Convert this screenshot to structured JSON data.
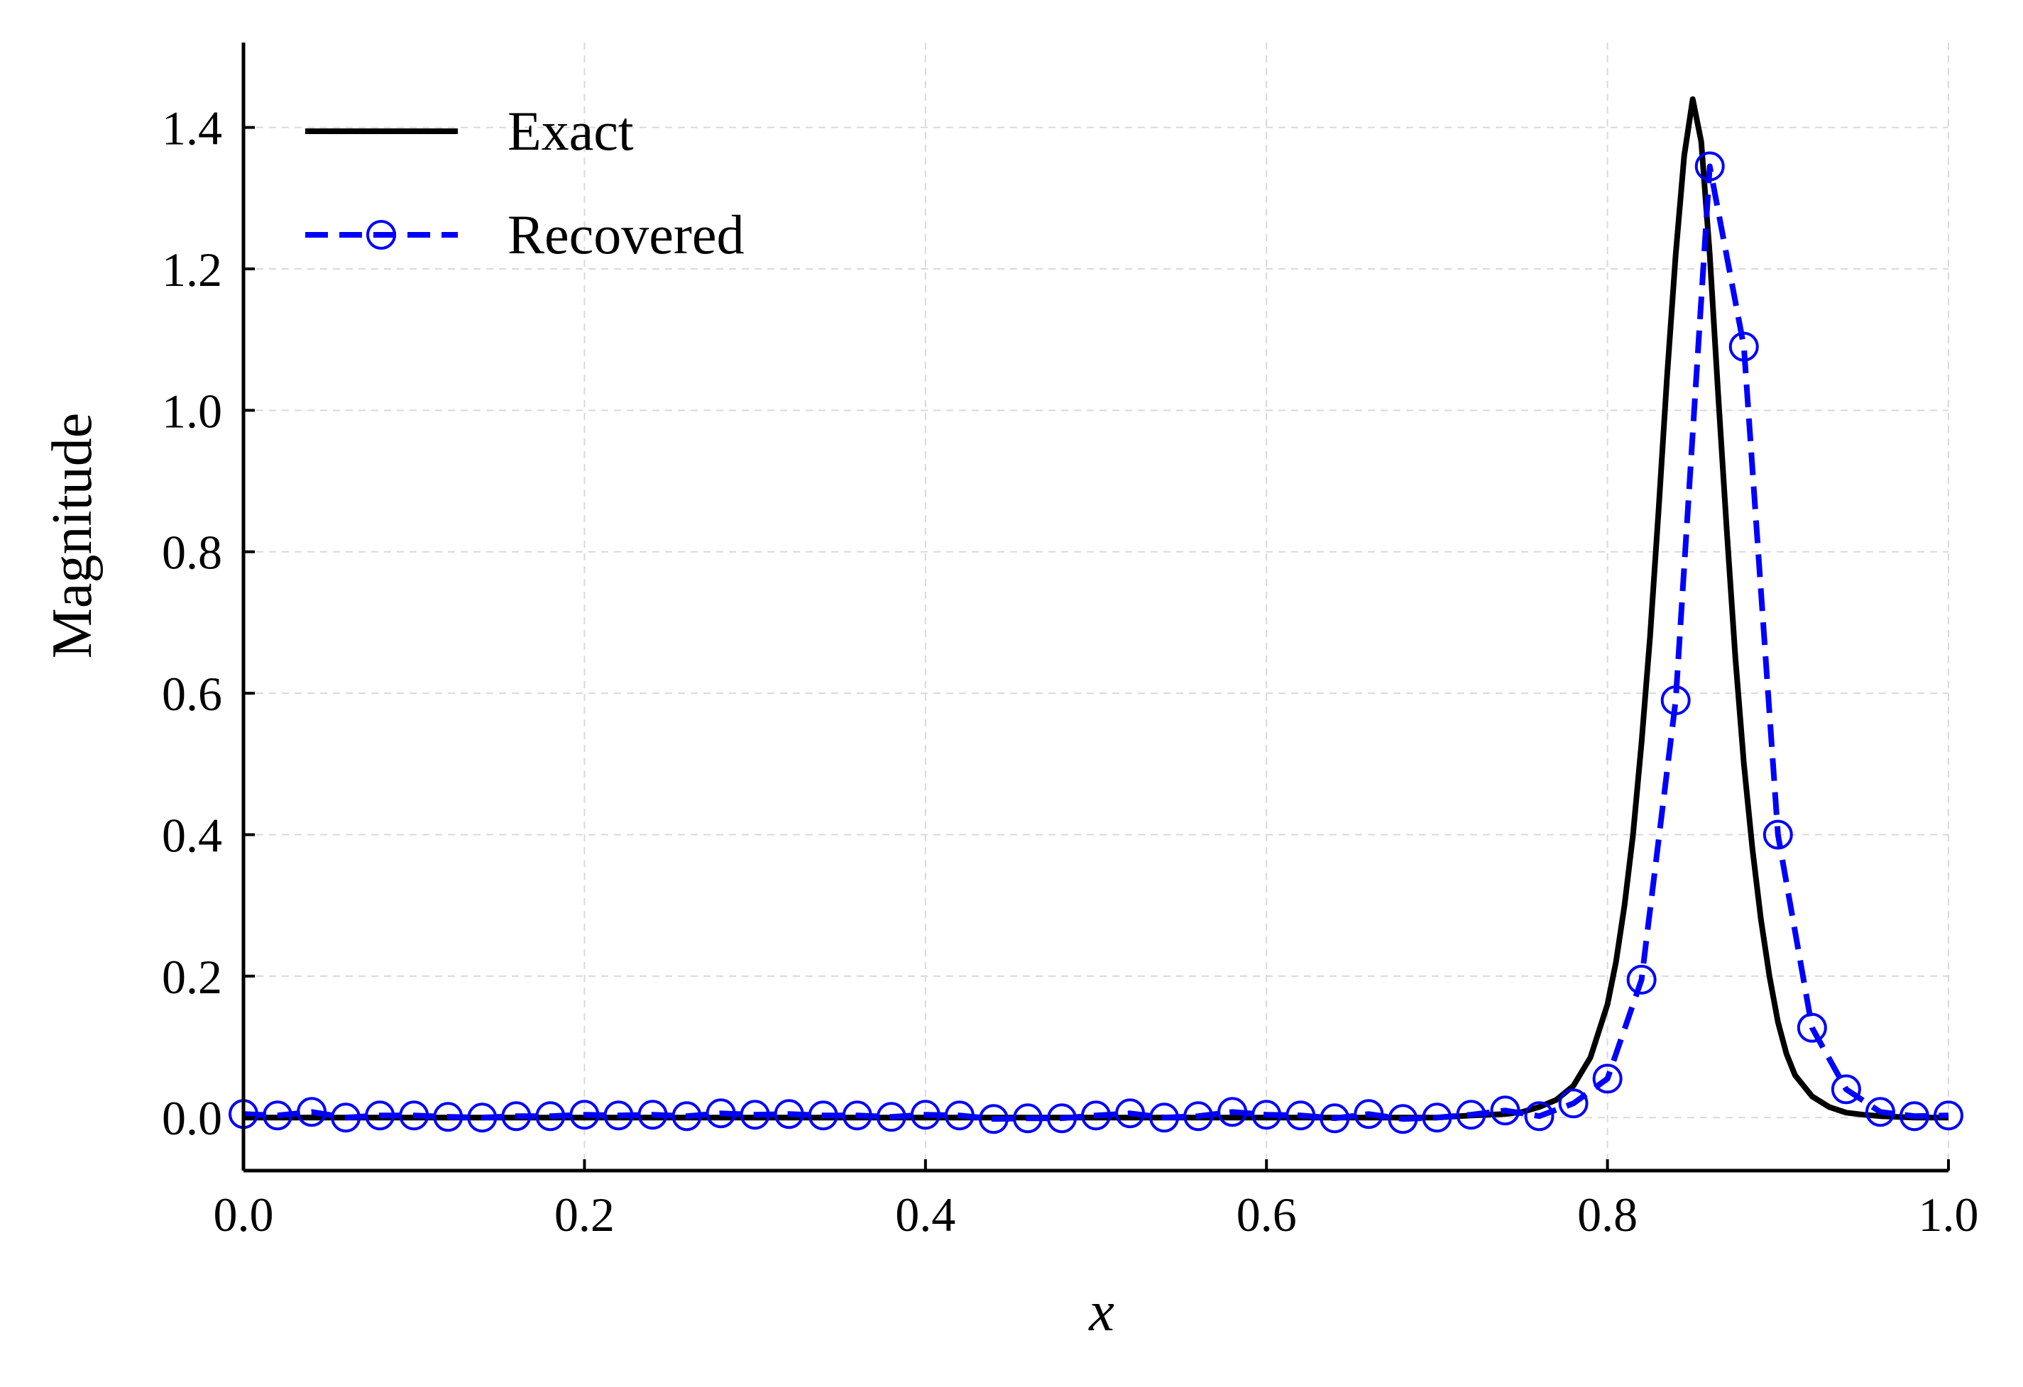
{
  "colors": {
    "exact": "#000000",
    "recovered": "#0000ff",
    "grid": "#d9d9d9"
  },
  "chart_data": {
    "type": "line",
    "title": "",
    "xlabel": "x",
    "ylabel": "Magnitude",
    "xlim": [
      0.0,
      1.0
    ],
    "ylim": [
      -0.075,
      1.52
    ],
    "xticks": [
      0.0,
      0.2,
      0.4,
      0.6,
      0.8,
      1.0
    ],
    "xtick_labels": [
      "0.0",
      "0.2",
      "0.4",
      "0.6",
      "0.8",
      "1.0"
    ],
    "yticks": [
      0.0,
      0.2,
      0.4,
      0.6,
      0.8,
      1.0,
      1.2,
      1.4
    ],
    "ytick_labels": [
      "0.0",
      "0.2",
      "0.4",
      "0.6",
      "0.8",
      "1.0",
      "1.2",
      "1.4"
    ],
    "grid": true,
    "legend_position": "top-left",
    "series": [
      {
        "name": "Exact",
        "style": "solid",
        "marker": "none",
        "x": [
          0.0,
          0.05,
          0.1,
          0.15,
          0.2,
          0.25,
          0.3,
          0.35,
          0.4,
          0.45,
          0.5,
          0.55,
          0.6,
          0.65,
          0.7,
          0.72,
          0.74,
          0.75,
          0.76,
          0.77,
          0.78,
          0.79,
          0.8,
          0.805,
          0.81,
          0.815,
          0.82,
          0.825,
          0.83,
          0.835,
          0.84,
          0.845,
          0.85,
          0.855,
          0.86,
          0.865,
          0.87,
          0.875,
          0.88,
          0.885,
          0.89,
          0.895,
          0.9,
          0.905,
          0.91,
          0.92,
          0.93,
          0.94,
          0.95,
          0.96,
          0.97,
          0.98,
          0.99,
          1.0
        ],
        "y": [
          0.0,
          0.0,
          0.0,
          0.0,
          0.0,
          0.0,
          0.0,
          0.0,
          0.0,
          0.0,
          0.0,
          0.0,
          0.0,
          0.0,
          0.0,
          0.003,
          0.005,
          0.008,
          0.015,
          0.025,
          0.045,
          0.085,
          0.16,
          0.22,
          0.3,
          0.4,
          0.53,
          0.68,
          0.86,
          1.05,
          1.22,
          1.36,
          1.44,
          1.38,
          1.22,
          1.02,
          0.83,
          0.65,
          0.5,
          0.38,
          0.28,
          0.2,
          0.135,
          0.09,
          0.06,
          0.03,
          0.015,
          0.007,
          0.004,
          0.002,
          0.001,
          0.0,
          0.0,
          0.0
        ]
      },
      {
        "name": "Recovered",
        "style": "dashed",
        "marker": "circle",
        "x": [
          0.0,
          0.02,
          0.04,
          0.06,
          0.08,
          0.1,
          0.12,
          0.14,
          0.16,
          0.18,
          0.2,
          0.22,
          0.24,
          0.26,
          0.28,
          0.3,
          0.32,
          0.34,
          0.36,
          0.38,
          0.4,
          0.42,
          0.44,
          0.46,
          0.48,
          0.5,
          0.52,
          0.54,
          0.56,
          0.58,
          0.6,
          0.62,
          0.64,
          0.66,
          0.68,
          0.7,
          0.72,
          0.74,
          0.76,
          0.78,
          0.8,
          0.82,
          0.84,
          0.86,
          0.88,
          0.9,
          0.92,
          0.94,
          0.96,
          0.98,
          1.0
        ],
        "y": [
          0.005,
          0.003,
          0.008,
          0.0,
          0.003,
          0.003,
          0.001,
          0.0,
          0.002,
          0.002,
          0.004,
          0.003,
          0.004,
          0.002,
          0.006,
          0.004,
          0.005,
          0.003,
          0.003,
          0.001,
          0.004,
          0.003,
          -0.002,
          -0.001,
          -0.001,
          0.003,
          0.006,
          0.0,
          0.002,
          0.008,
          0.004,
          0.003,
          -0.001,
          0.005,
          -0.002,
          0.0,
          0.004,
          0.01,
          0.002,
          0.02,
          0.055,
          0.195,
          0.59,
          1.345,
          1.09,
          0.4,
          0.127,
          0.04,
          0.008,
          0.002,
          0.003
        ]
      }
    ]
  }
}
